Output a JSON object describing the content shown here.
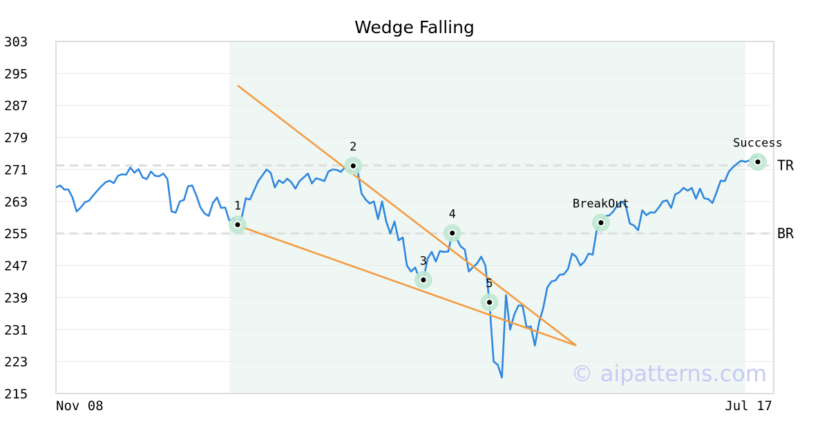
{
  "chart_data": {
    "type": "line",
    "title": "Wedge Falling",
    "xlabel": "",
    "ylabel": "",
    "ylim": [
      215,
      303
    ],
    "y_ticks": [
      "303",
      "295",
      "287",
      "279",
      "271",
      "263",
      "255",
      "247",
      "239",
      "231",
      "223",
      "215"
    ],
    "x_ticks": [
      "Nov 08",
      "Jul 17"
    ],
    "grid": true,
    "pattern_region": [
      42,
      167
    ],
    "levels": [
      {
        "label": "TR",
        "value": 272
      },
      {
        "label": "BR",
        "value": 255
      }
    ],
    "trendlines": [
      {
        "points": [
          [
            44,
            292
          ],
          [
            126,
            227
          ]
        ]
      },
      {
        "points": [
          [
            44,
            257
          ],
          [
            126,
            227
          ]
        ]
      }
    ],
    "annotations": [
      {
        "label": "1",
        "x": 44,
        "y": 257.2
      },
      {
        "label": "2",
        "x": 72,
        "y": 271.9
      },
      {
        "label": "3",
        "x": 89,
        "y": 243.4
      },
      {
        "label": "4",
        "x": 96,
        "y": 255.1
      },
      {
        "label": "5",
        "x": 105,
        "y": 237.8
      },
      {
        "label": "BreakOut",
        "x": 132,
        "y": 257.7
      },
      {
        "label": "Success",
        "x": 170,
        "y": 272.9
      }
    ],
    "series": [
      {
        "color": "#2e86de",
        "points": [
          [
            0,
            266.5
          ],
          [
            1,
            267
          ],
          [
            2,
            266
          ],
          [
            3,
            266
          ],
          [
            4,
            264
          ],
          [
            5,
            260.5
          ],
          [
            6,
            261.5
          ],
          [
            7,
            262.8
          ],
          [
            8,
            263.2
          ],
          [
            9,
            264.5
          ],
          [
            10,
            265.7
          ],
          [
            11,
            266.8
          ],
          [
            12,
            267.8
          ],
          [
            13,
            268.2
          ],
          [
            14,
            267.6
          ],
          [
            15,
            269.4
          ],
          [
            16,
            269.8
          ],
          [
            17,
            269.7
          ],
          [
            18,
            271.5
          ],
          [
            19,
            270.2
          ],
          [
            20,
            271.1
          ],
          [
            21,
            269
          ],
          [
            22,
            268.6
          ],
          [
            23,
            270.5
          ],
          [
            24,
            269.4
          ],
          [
            25,
            269.3
          ],
          [
            26,
            270
          ],
          [
            27,
            268.6
          ],
          [
            28,
            260.5
          ],
          [
            29,
            260.2
          ],
          [
            30,
            263
          ],
          [
            31,
            263.4
          ],
          [
            32,
            266.8
          ],
          [
            33,
            267
          ],
          [
            34,
            264.5
          ],
          [
            35,
            261.5
          ],
          [
            36,
            260
          ],
          [
            37,
            259.4
          ],
          [
            38,
            262.6
          ],
          [
            39,
            264
          ],
          [
            40,
            261.4
          ],
          [
            41,
            261.5
          ],
          [
            42,
            258.2
          ],
          [
            43,
            258.8
          ],
          [
            44,
            257.2
          ],
          [
            45,
            259
          ],
          [
            46,
            263.8
          ],
          [
            47,
            263.5
          ],
          [
            48,
            265.8
          ],
          [
            49,
            268.1
          ],
          [
            50,
            269.5
          ],
          [
            51,
            271
          ],
          [
            52,
            270.2
          ],
          [
            53,
            266.5
          ],
          [
            54,
            268.3
          ],
          [
            55,
            267.6
          ],
          [
            56,
            268.7
          ],
          [
            57,
            267.8
          ],
          [
            58,
            266.2
          ],
          [
            59,
            268.1
          ],
          [
            60,
            269
          ],
          [
            61,
            270
          ],
          [
            62,
            267.5
          ],
          [
            63,
            268.8
          ],
          [
            64,
            268.5
          ],
          [
            65,
            268.1
          ],
          [
            66,
            270.5
          ],
          [
            67,
            271
          ],
          [
            68,
            270.9
          ],
          [
            69,
            270.4
          ],
          [
            70,
            271.5
          ],
          [
            71,
            270.5
          ],
          [
            72,
            271.9
          ],
          [
            73,
            271.1
          ],
          [
            74,
            265
          ],
          [
            75,
            263.5
          ],
          [
            76,
            262.5
          ],
          [
            77,
            263
          ],
          [
            78,
            258.6
          ],
          [
            79,
            263
          ],
          [
            80,
            258
          ],
          [
            81,
            255
          ],
          [
            82,
            258
          ],
          [
            83,
            253.3
          ],
          [
            84,
            254
          ],
          [
            85,
            247
          ],
          [
            86,
            245.5
          ],
          [
            87,
            246.5
          ],
          [
            88,
            243.8
          ],
          [
            89,
            243.4
          ],
          [
            90,
            248.7
          ],
          [
            91,
            250.4
          ],
          [
            92,
            248
          ],
          [
            93,
            250.6
          ],
          [
            94,
            250.4
          ],
          [
            95,
            250.5
          ],
          [
            96,
            255.1
          ],
          [
            97,
            253.8
          ],
          [
            98,
            251.8
          ],
          [
            99,
            251
          ],
          [
            100,
            245.5
          ],
          [
            101,
            246.6
          ],
          [
            102,
            247.5
          ],
          [
            103,
            249.2
          ],
          [
            104,
            247
          ],
          [
            105,
            237.8
          ],
          [
            106,
            223
          ],
          [
            107,
            222.2
          ],
          [
            108,
            219
          ],
          [
            109,
            239.6
          ],
          [
            110,
            231
          ],
          [
            111,
            234.7
          ],
          [
            112,
            237
          ],
          [
            113,
            237
          ],
          [
            114,
            231.5
          ],
          [
            115,
            231.8
          ],
          [
            116,
            227
          ],
          [
            117,
            232.7
          ],
          [
            118,
            236.3
          ],
          [
            119,
            241.5
          ],
          [
            120,
            243
          ],
          [
            121,
            243.3
          ],
          [
            122,
            244.7
          ],
          [
            123,
            244.8
          ],
          [
            124,
            246.1
          ],
          [
            125,
            250
          ],
          [
            126,
            249.2
          ],
          [
            127,
            247
          ],
          [
            128,
            248
          ],
          [
            129,
            250
          ],
          [
            130,
            249.7
          ],
          [
            131,
            256
          ],
          [
            132,
            257.7
          ],
          [
            133,
            259.4
          ],
          [
            134,
            259.5
          ],
          [
            135,
            260.5
          ],
          [
            136,
            262.1
          ],
          [
            137,
            263
          ],
          [
            138,
            262
          ],
          [
            139,
            257.5
          ],
          [
            140,
            257
          ],
          [
            141,
            255.8
          ],
          [
            142,
            260.8
          ],
          [
            143,
            259.6
          ],
          [
            144,
            260.3
          ],
          [
            145,
            260.2
          ],
          [
            146,
            261.5
          ],
          [
            147,
            263
          ],
          [
            148,
            263.3
          ],
          [
            149,
            261.4
          ],
          [
            150,
            264.8
          ],
          [
            151,
            265.3
          ],
          [
            152,
            266.4
          ],
          [
            153,
            265.7
          ],
          [
            154,
            266.4
          ],
          [
            155,
            263.7
          ],
          [
            156,
            266.2
          ],
          [
            157,
            263.8
          ],
          [
            158,
            263.6
          ],
          [
            159,
            262.6
          ],
          [
            160,
            265.3
          ],
          [
            161,
            268.2
          ],
          [
            162,
            268.1
          ],
          [
            163,
            270.5
          ],
          [
            164,
            271.6
          ],
          [
            165,
            272.5
          ],
          [
            166,
            273.2
          ],
          [
            167,
            272.9
          ],
          [
            168,
            273.3
          ],
          [
            169,
            274.2
          ],
          [
            170,
            274.1
          ]
        ]
      }
    ],
    "watermark": "© aipatterns.com",
    "colors": {
      "line": "#2e86de",
      "trendline": "#f59a40",
      "region": "#eef7f3",
      "marker_halo": "#bfe8d2",
      "level": "#dddddd"
    }
  }
}
